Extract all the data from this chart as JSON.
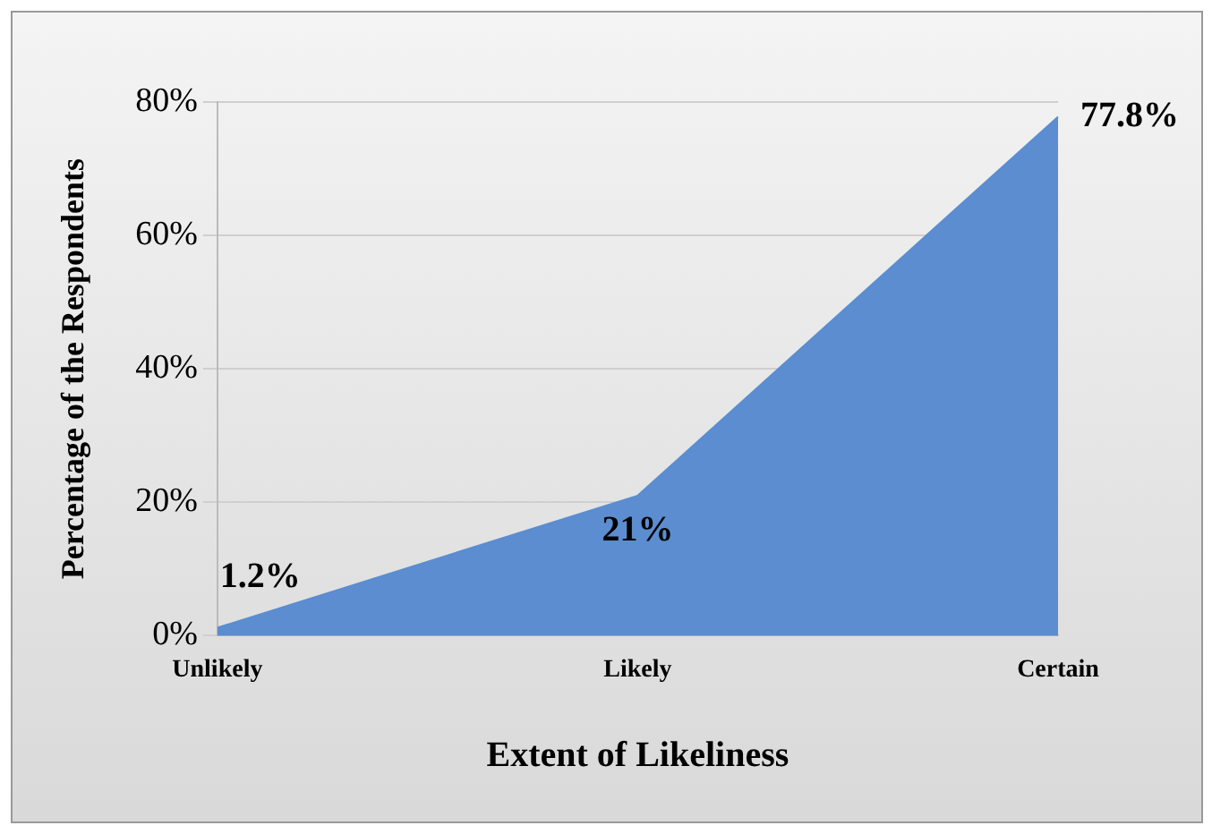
{
  "chart_data": {
    "type": "area",
    "xlabel": "Extent of Likeliness",
    "ylabel": "Percentage of the Respondents",
    "categories": [
      "Unlikely",
      "Likely",
      "Certain"
    ],
    "series": [
      {
        "color": "#5b8dd0",
        "values": [
          1.2,
          21,
          77.8
        ],
        "value_labels": [
          "1.2%",
          "21%",
          "77.8%"
        ]
      }
    ],
    "ylim": [
      0,
      80
    ],
    "yticks": [
      {
        "value": 0,
        "label": "0%"
      },
      {
        "value": 20,
        "label": "20%"
      },
      {
        "value": 40,
        "label": "40%"
      },
      {
        "value": 60,
        "label": "60%"
      },
      {
        "value": 80,
        "label": "80%"
      }
    ],
    "grid": "y",
    "legend": false
  }
}
